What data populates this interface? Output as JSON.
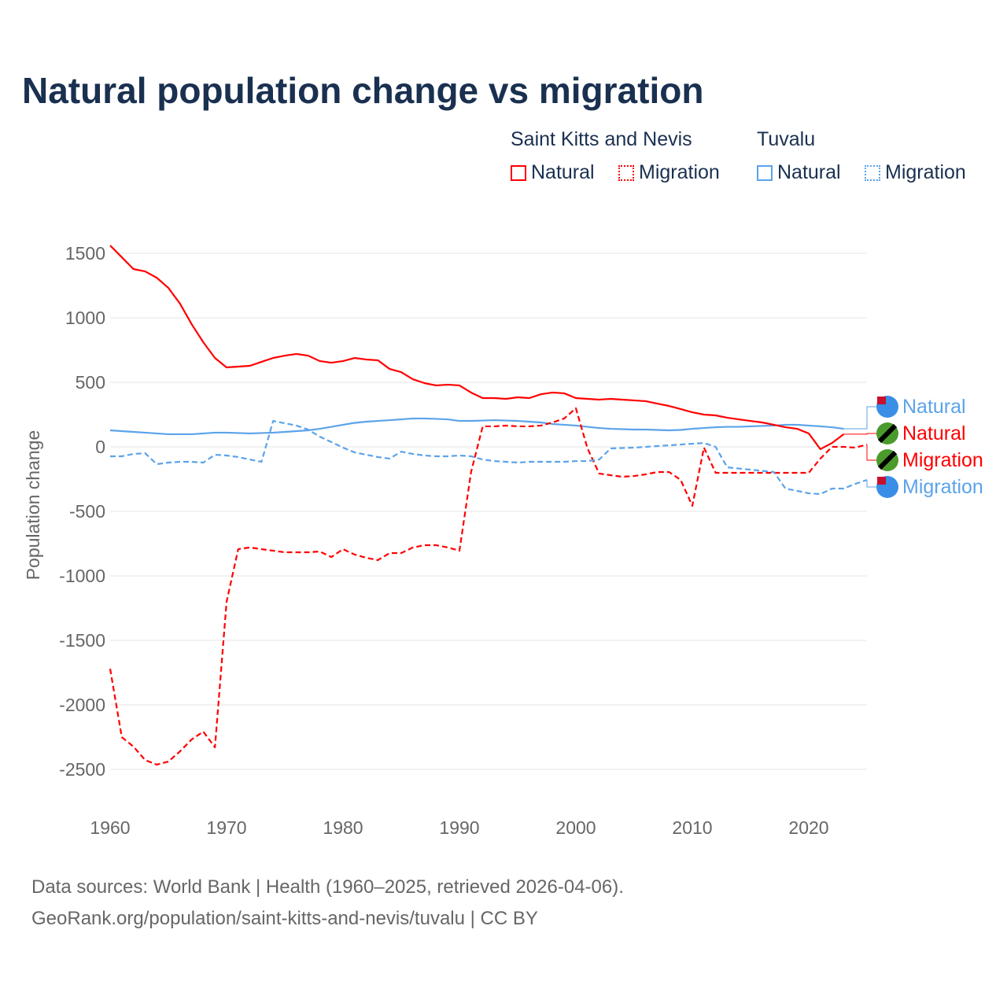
{
  "title": "Natural population change vs migration",
  "legend": {
    "groups": [
      {
        "name": "Saint Kitts and Nevis",
        "color": "#ff0000",
        "items": [
          "Natural",
          "Migration"
        ]
      },
      {
        "name": "Tuvalu",
        "color": "#5ba3ea",
        "items": [
          "Natural",
          "Migration"
        ]
      }
    ]
  },
  "footer": {
    "line1": "Data sources: World Bank | Health (1960–2025, retrieved 2026-04-06).",
    "line2": "GeoRank.org/population/saint-kitts-and-nevis/tuvalu | CC BY"
  },
  "chart_data": {
    "type": "line",
    "title": "Natural population change vs migration",
    "xlabel": "",
    "ylabel": "Population change",
    "xlim": [
      1960,
      2025
    ],
    "ylim": [
      -2700,
      1600
    ],
    "yticks": [
      1500,
      1000,
      500,
      0,
      -500,
      -1000,
      -1500,
      -2000,
      -2500
    ],
    "ytick_labels": [
      "1500",
      "1000",
      "500",
      "0",
      "-500",
      "-1000",
      "-1500",
      "-2000",
      "-2500"
    ],
    "xticks": [
      1960,
      1970,
      1980,
      1990,
      2000,
      2010,
      2020
    ],
    "xtick_labels": [
      "1960",
      "1970",
      "1980",
      "1990",
      "2000",
      "2010",
      "2020"
    ],
    "grid": true,
    "series": [
      {
        "name": "Saint Kitts and Nevis Natural",
        "label": "Natural",
        "color": "#ff0000",
        "dash": false,
        "x0": 1960,
        "values": [
          1561,
          1470,
          1378,
          1360,
          1311,
          1232,
          1110,
          951,
          811,
          689,
          616,
          622,
          628,
          659,
          689,
          707,
          720,
          707,
          665,
          652,
          665,
          689,
          677,
          671,
          604,
          579,
          524,
          494,
          476,
          482,
          476,
          421,
          378,
          378,
          372,
          384,
          378,
          408,
          421,
          415,
          378,
          372,
          366,
          372,
          366,
          360,
          354,
          335,
          317,
          293,
          268,
          250,
          244,
          226,
          213,
          201,
          189,
          171,
          152,
          140,
          104,
          -18,
          30,
          98
        ]
      },
      {
        "name": "Saint Kitts and Nevis Migration",
        "label": "Migration",
        "color": "#ff0000",
        "dash": true,
        "x0": 1960,
        "values": [
          -1720,
          -2250,
          -2323,
          -2427,
          -2463,
          -2439,
          -2360,
          -2268,
          -2207,
          -2329,
          -1201,
          -793,
          -780,
          -793,
          -805,
          -817,
          -817,
          -817,
          -811,
          -854,
          -793,
          -835,
          -860,
          -878,
          -823,
          -823,
          -780,
          -762,
          -762,
          -780,
          -805,
          -195,
          159,
          159,
          165,
          159,
          159,
          165,
          189,
          220,
          299,
          -12,
          -207,
          -220,
          -232,
          -226,
          -213,
          -195,
          -195,
          -256,
          -457,
          -6,
          -201,
          -201,
          -201,
          -201,
          -201,
          -201,
          -201,
          -201,
          -201,
          -91,
          0,
          0,
          -6,
          18
        ]
      },
      {
        "name": "Tuvalu Natural",
        "label": "Natural",
        "color": "#5ba3ea",
        "dash": false,
        "x0": 1960,
        "values": [
          128,
          122,
          116,
          110,
          104,
          98,
          98,
          98,
          104,
          110,
          110,
          107,
          104,
          107,
          110,
          116,
          122,
          128,
          140,
          155,
          171,
          186,
          195,
          201,
          207,
          213,
          220,
          220,
          217,
          213,
          201,
          201,
          204,
          207,
          204,
          201,
          195,
          189,
          177,
          171,
          165,
          155,
          146,
          140,
          137,
          134,
          134,
          131,
          128,
          131,
          140,
          146,
          152,
          155,
          155,
          159,
          162,
          165,
          171,
          171,
          165,
          159,
          152,
          140
        ]
      },
      {
        "name": "Tuvalu Migration",
        "label": "Migration",
        "color": "#5ba3ea",
        "dash": true,
        "x0": 1960,
        "values": [
          -73,
          -73,
          -55,
          -49,
          -134,
          -122,
          -116,
          -116,
          -122,
          -61,
          -67,
          -79,
          -98,
          -116,
          201,
          183,
          165,
          134,
          79,
          37,
          -6,
          -43,
          -61,
          -79,
          -91,
          -37,
          -55,
          -67,
          -73,
          -73,
          -67,
          -73,
          -98,
          -110,
          -116,
          -122,
          -116,
          -116,
          -116,
          -116,
          -110,
          -110,
          -98,
          -12,
          -9,
          -6,
          0,
          6,
          12,
          18,
          24,
          30,
          0,
          -159,
          -168,
          -177,
          -186,
          -195,
          -323,
          -341,
          -360,
          -366,
          -323,
          -323,
          -287,
          -256
        ]
      }
    ]
  }
}
